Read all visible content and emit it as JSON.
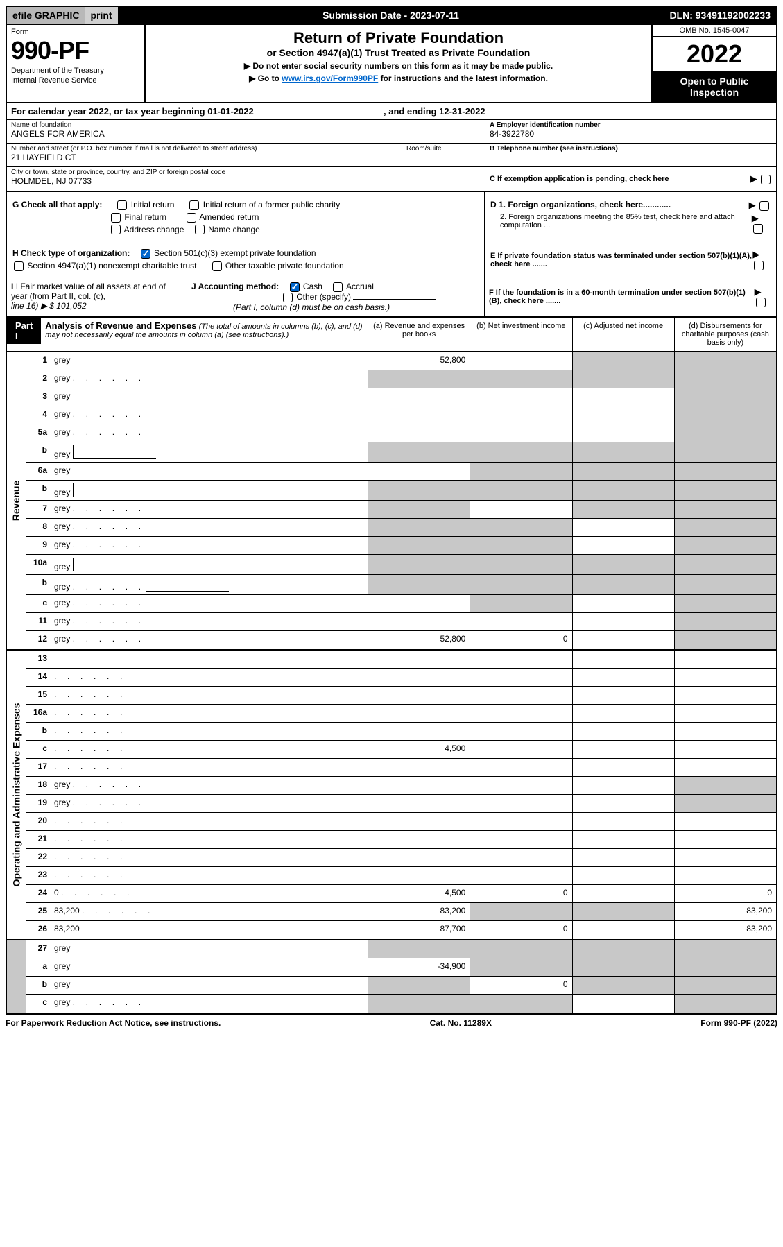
{
  "topbar": {
    "efile": "efile GRAPHIC",
    "print": "print",
    "submission_label": "Submission Date - ",
    "submission_date": "2023-07-11",
    "dln_label": "DLN: ",
    "dln": "93491192002233"
  },
  "header": {
    "form_label": "Form",
    "form_number": "990-PF",
    "dept1": "Department of the Treasury",
    "dept2": "Internal Revenue Service",
    "title1": "Return of Private Foundation",
    "title2": "or Section 4947(a)(1) Trust Treated as Private Foundation",
    "sub1": "▶ Do not enter social security numbers on this form as it may be made public.",
    "sub2_pre": "▶ Go to ",
    "sub2_link": "www.irs.gov/Form990PF",
    "sub2_post": " for instructions and the latest information.",
    "omb": "OMB No. 1545-0047",
    "year": "2022",
    "open1": "Open to Public",
    "open2": "Inspection"
  },
  "calendar": {
    "text_pre": "For calendar year 2022, or tax year beginning ",
    "begin": "01-01-2022",
    "text_mid": " , and ending ",
    "end": "12-31-2022"
  },
  "entity": {
    "name_label": "Name of foundation",
    "name": "ANGELS FOR AMERICA",
    "street_label": "Number and street (or P.O. box number if mail is not delivered to street address)",
    "street": "21 HAYFIELD CT",
    "room_label": "Room/suite",
    "room": "",
    "city_label": "City or town, state or province, country, and ZIP or foreign postal code",
    "city": "HOLMDEL, NJ  07733",
    "ein_label": "A Employer identification number",
    "ein": "84-3922780",
    "tel_label": "B Telephone number (see instructions)",
    "tel": "",
    "c_label": "C If exemption application is pending, check here"
  },
  "checks": {
    "g_label": "G Check all that apply:",
    "g_initial": "Initial return",
    "g_initial_former": "Initial return of a former public charity",
    "g_final": "Final return",
    "g_amended": "Amended return",
    "g_address": "Address change",
    "g_name": "Name change",
    "h_label": "H Check type of organization:",
    "h_501c3": "Section 501(c)(3) exempt private foundation",
    "h_4947": "Section 4947(a)(1) nonexempt charitable trust",
    "h_other": "Other taxable private foundation",
    "d1": "D 1. Foreign organizations, check here............",
    "d2": "2. Foreign organizations meeting the 85% test, check here and attach computation ...",
    "e_label": "E  If private foundation status was terminated under section 507(b)(1)(A), check here .......",
    "i_label": "I Fair market value of all assets at end of year (from Part II, col. (c),",
    "i_line": "line 16) ▶ $",
    "i_value": "101,052",
    "j_label": "J Accounting method:",
    "j_cash": "Cash",
    "j_accrual": "Accrual",
    "j_other": "Other (specify)",
    "j_note": "(Part I, column (d) must be on cash basis.)",
    "f_label": "F  If the foundation is in a 60-month termination under section 507(b)(1)(B), check here ......."
  },
  "part1": {
    "label": "Part I",
    "title": "Analysis of Revenue and Expenses",
    "subtitle": " (The total of amounts in columns (b), (c), and (d) may not necessarily equal the amounts in column (a) (see instructions).)",
    "col_a": "(a) Revenue and expenses per books",
    "col_b": "(b) Net investment income",
    "col_c": "(c) Adjusted net income",
    "col_d": "(d) Disbursements for charitable purposes (cash basis only)"
  },
  "side_labels": {
    "revenue": "Revenue",
    "expenses": "Operating and Administrative Expenses"
  },
  "rows": [
    {
      "n": "1",
      "d": "grey",
      "a": "52,800",
      "b": "",
      "c": "grey"
    },
    {
      "n": "2",
      "d": "grey",
      "a": "grey",
      "b": "grey",
      "c": "grey",
      "dots": true
    },
    {
      "n": "3",
      "d": "grey",
      "a": "",
      "b": "",
      "c": ""
    },
    {
      "n": "4",
      "d": "grey",
      "a": "",
      "b": "",
      "c": "",
      "dots": true
    },
    {
      "n": "5a",
      "d": "grey",
      "a": "",
      "b": "",
      "c": "",
      "dots": true
    },
    {
      "n": "b",
      "d": "grey",
      "a": "grey",
      "b": "grey",
      "c": "grey",
      "inline": true
    },
    {
      "n": "6a",
      "d": "grey",
      "a": "",
      "b": "grey",
      "c": "grey"
    },
    {
      "n": "b",
      "d": "grey",
      "a": "grey",
      "b": "grey",
      "c": "grey",
      "inline": true
    },
    {
      "n": "7",
      "d": "grey",
      "a": "grey",
      "b": "",
      "c": "grey",
      "dots": true
    },
    {
      "n": "8",
      "d": "grey",
      "a": "grey",
      "b": "grey",
      "c": "",
      "dots": true
    },
    {
      "n": "9",
      "d": "grey",
      "a": "grey",
      "b": "grey",
      "c": "",
      "dots": true
    },
    {
      "n": "10a",
      "d": "grey",
      "a": "grey",
      "b": "grey",
      "c": "grey",
      "inline": true
    },
    {
      "n": "b",
      "d": "grey",
      "a": "grey",
      "b": "grey",
      "c": "grey",
      "inline": true,
      "dots": true
    },
    {
      "n": "c",
      "d": "grey",
      "a": "",
      "b": "grey",
      "c": "",
      "dots": true
    },
    {
      "n": "11",
      "d": "grey",
      "a": "",
      "b": "",
      "c": "",
      "dots": true
    },
    {
      "n": "12",
      "d": "grey",
      "a": "52,800",
      "b": "0",
      "c": "",
      "dots": true
    }
  ],
  "exp_rows": [
    {
      "n": "13",
      "d": "",
      "a": "",
      "b": "",
      "c": ""
    },
    {
      "n": "14",
      "d": "",
      "a": "",
      "b": "",
      "c": "",
      "dots": true
    },
    {
      "n": "15",
      "d": "",
      "a": "",
      "b": "",
      "c": "",
      "dots": true
    },
    {
      "n": "16a",
      "d": "",
      "a": "",
      "b": "",
      "c": "",
      "dots": true
    },
    {
      "n": "b",
      "d": "",
      "a": "",
      "b": "",
      "c": "",
      "dots": true
    },
    {
      "n": "c",
      "d": "",
      "a": "4,500",
      "b": "",
      "c": "",
      "dots": true
    },
    {
      "n": "17",
      "d": "",
      "a": "",
      "b": "",
      "c": "",
      "dots": true
    },
    {
      "n": "18",
      "d": "grey",
      "a": "",
      "b": "",
      "c": "",
      "dots": true
    },
    {
      "n": "19",
      "d": "grey",
      "a": "",
      "b": "",
      "c": "",
      "dots": true
    },
    {
      "n": "20",
      "d": "",
      "a": "",
      "b": "",
      "c": "",
      "dots": true
    },
    {
      "n": "21",
      "d": "",
      "a": "",
      "b": "",
      "c": "",
      "dots": true
    },
    {
      "n": "22",
      "d": "",
      "a": "",
      "b": "",
      "c": "",
      "dots": true
    },
    {
      "n": "23",
      "d": "",
      "a": "",
      "b": "",
      "c": "",
      "dots": true
    },
    {
      "n": "24",
      "d": "0",
      "a": "4,500",
      "b": "0",
      "c": "",
      "dots": true
    },
    {
      "n": "25",
      "d": "83,200",
      "a": "83,200",
      "b": "grey",
      "c": "grey",
      "dots": true
    },
    {
      "n": "26",
      "d": "83,200",
      "a": "87,700",
      "b": "0",
      "c": ""
    }
  ],
  "bottom_rows": [
    {
      "n": "27",
      "d": "grey",
      "a": "grey",
      "b": "grey",
      "c": "grey"
    },
    {
      "n": "a",
      "d": "grey",
      "a": "-34,900",
      "b": "grey",
      "c": "grey"
    },
    {
      "n": "b",
      "d": "grey",
      "a": "grey",
      "b": "0",
      "c": "grey"
    },
    {
      "n": "c",
      "d": "grey",
      "a": "grey",
      "b": "grey",
      "c": "",
      "dots": true
    }
  ],
  "footer": {
    "left": "For Paperwork Reduction Act Notice, see instructions.",
    "mid": "Cat. No. 11289X",
    "right": "Form 990-PF (2022)"
  },
  "colors": {
    "black": "#000000",
    "grey_bg": "#c8c8c8",
    "topbar_grey1": "#b8b8b8",
    "topbar_grey2": "#d0d0d0",
    "link": "#0066cc",
    "check_blue": "#0066cc"
  }
}
